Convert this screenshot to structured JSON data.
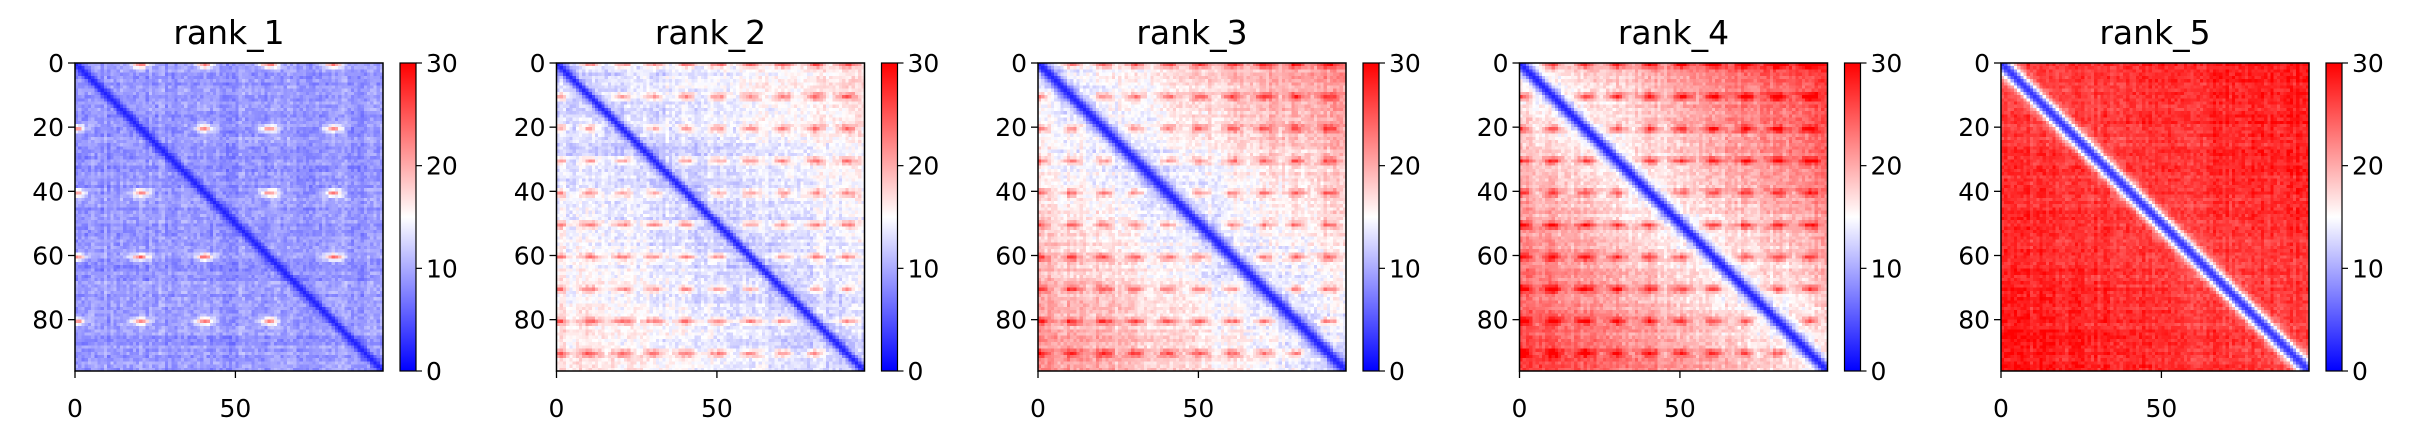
{
  "chart_data": [
    {
      "type": "heatmap",
      "title": "rank_1",
      "matrix_size": 96,
      "xticks": [
        0,
        50
      ],
      "yticks": [
        0,
        20,
        40,
        60,
        80
      ],
      "colorbar": {
        "min": 0,
        "max": 30,
        "ticks": [
          0,
          10,
          20,
          30
        ],
        "colormap": "bwr"
      },
      "pattern": {
        "base": 9,
        "diagonal_value": 2,
        "diagonal_width": 1.5,
        "spot_period": 20,
        "spot_value": 22,
        "noise": 3,
        "far_gain": 0
      }
    },
    {
      "type": "heatmap",
      "title": "rank_2",
      "matrix_size": 96,
      "xticks": [
        0,
        50
      ],
      "yticks": [
        0,
        20,
        40,
        60,
        80
      ],
      "colorbar": {
        "min": 0,
        "max": 30,
        "ticks": [
          0,
          10,
          20,
          30
        ],
        "colormap": "bwr"
      },
      "pattern": {
        "base": 12,
        "diagonal_value": 2,
        "diagonal_width": 1.5,
        "spot_period": 10,
        "spot_value": 20,
        "noise": 3,
        "far_gain": 5
      }
    },
    {
      "type": "heatmap",
      "title": "rank_3",
      "matrix_size": 96,
      "xticks": [
        0,
        50
      ],
      "yticks": [
        0,
        20,
        40,
        60,
        80
      ],
      "colorbar": {
        "min": 0,
        "max": 30,
        "ticks": [
          0,
          10,
          20,
          30
        ],
        "colormap": "bwr"
      },
      "pattern": {
        "base": 13,
        "diagonal_value": 2,
        "diagonal_width": 2,
        "spot_period": 10,
        "spot_value": 21,
        "noise": 3,
        "far_gain": 9
      }
    },
    {
      "type": "heatmap",
      "title": "rank_4",
      "matrix_size": 96,
      "xticks": [
        0,
        50
      ],
      "yticks": [
        0,
        20,
        40,
        60,
        80
      ],
      "colorbar": {
        "min": 0,
        "max": 30,
        "ticks": [
          0,
          10,
          20,
          30
        ],
        "colormap": "bwr"
      },
      "pattern": {
        "base": 15,
        "diagonal_value": 2,
        "diagonal_width": 2,
        "spot_period": 10,
        "spot_value": 24,
        "noise": 3,
        "far_gain": 12
      }
    },
    {
      "type": "heatmap",
      "title": "rank_5",
      "matrix_size": 96,
      "xticks": [
        0,
        50
      ],
      "yticks": [
        0,
        20,
        40,
        60,
        80
      ],
      "colorbar": {
        "min": 0,
        "max": 30,
        "ticks": [
          0,
          10,
          20,
          30
        ],
        "colormap": "bwr"
      },
      "pattern": {
        "base": 26,
        "diagonal_value": 3,
        "diagonal_width": 2.5,
        "spot_period": 0,
        "spot_value": 0,
        "noise": 3,
        "far_gain": 3
      }
    }
  ]
}
